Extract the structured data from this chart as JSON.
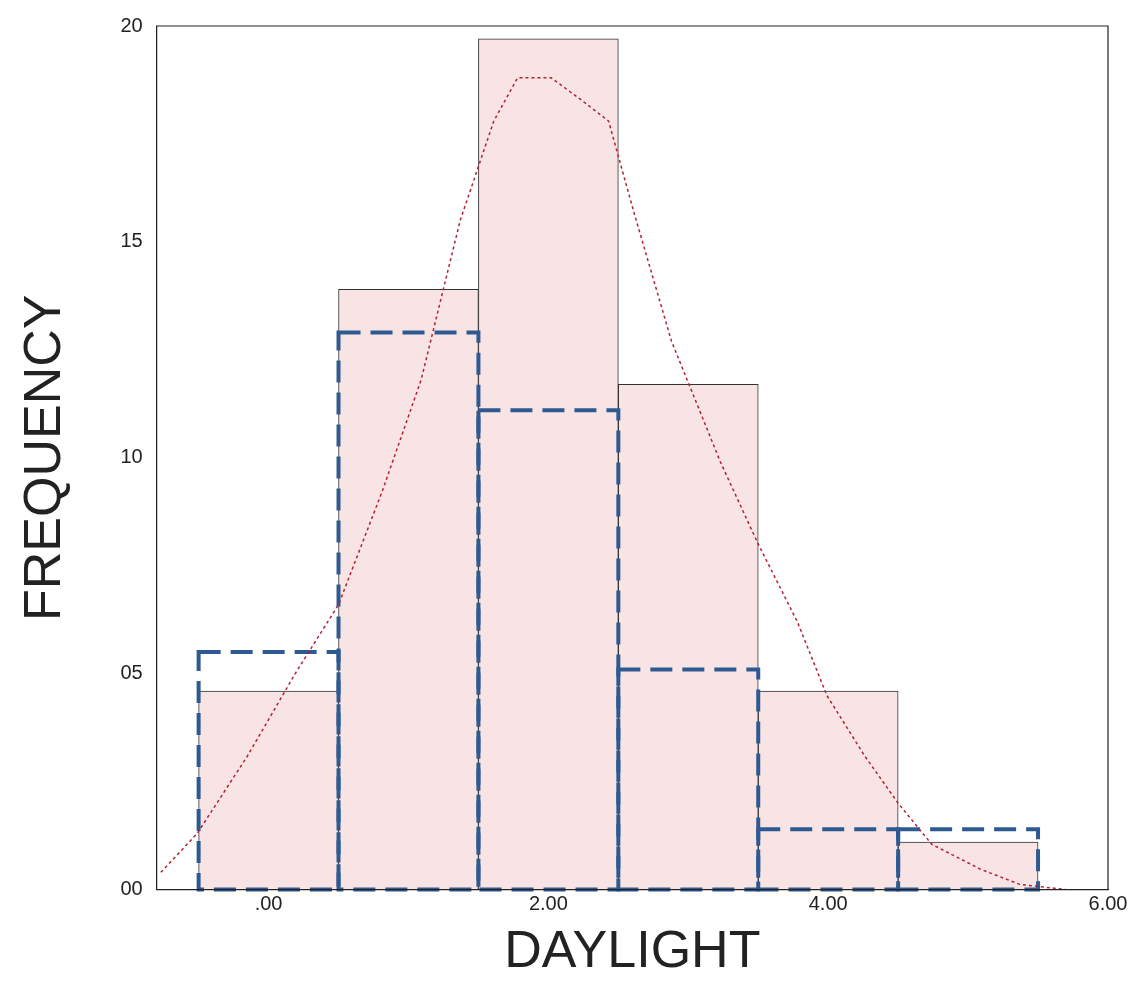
{
  "chart_data": {
    "type": "histogram",
    "xlabel": "DAYLIGHT",
    "ylabel": "FREQUENCY",
    "bins": [
      -0.5,
      0.5,
      1.5,
      2.5,
      3.5,
      4.5,
      5.5
    ],
    "series": [
      {
        "color": "#f8e4e4",
        "values": [
          4.6,
          13.9,
          19.7,
          11.7,
          4.6,
          1.1
        ]
      },
      {
        "color": "#2e5a91",
        "line_style": "dashed",
        "values": [
          5.5,
          12.9,
          11.1,
          5.1,
          1.4,
          1.4
        ]
      },
      {
        "type": "line",
        "color": "#b22234",
        "line_style": "dotted",
        "x": [
          -0.77,
          -0.51,
          -0.15,
          0.19,
          0.5,
          0.81,
          1.09,
          1.37,
          1.61,
          1.78,
          2.02,
          2.23,
          2.43,
          2.61,
          2.88,
          3.23,
          3.5,
          3.78,
          3.99,
          4.26,
          4.5,
          4.74,
          5.09,
          5.37,
          5.7
        ],
        "values": [
          0.4,
          1.3,
          3.1,
          5.0,
          6.6,
          9.2,
          11.8,
          15.5,
          17.8,
          18.8,
          18.8,
          18.3,
          17.8,
          15.7,
          12.7,
          9.9,
          8.0,
          6.2,
          4.5,
          3.1,
          2.0,
          1.05,
          0.47,
          0.12,
          0
        ]
      }
    ],
    "xlim": [
      -0.8,
      6
    ],
    "xticks": [
      {
        "value": 0,
        "label": ".00"
      },
      {
        "value": 2,
        "label": "2.00"
      },
      {
        "value": 4,
        "label": "4.00"
      },
      {
        "value": 6,
        "label": "6.00"
      }
    ],
    "ylim": [
      0,
      20
    ],
    "yticks": [
      {
        "value": 0,
        "label": "00"
      },
      {
        "value": 5,
        "label": "05"
      },
      10,
      15,
      20
    ],
    "grid": false,
    "legend": false
  }
}
